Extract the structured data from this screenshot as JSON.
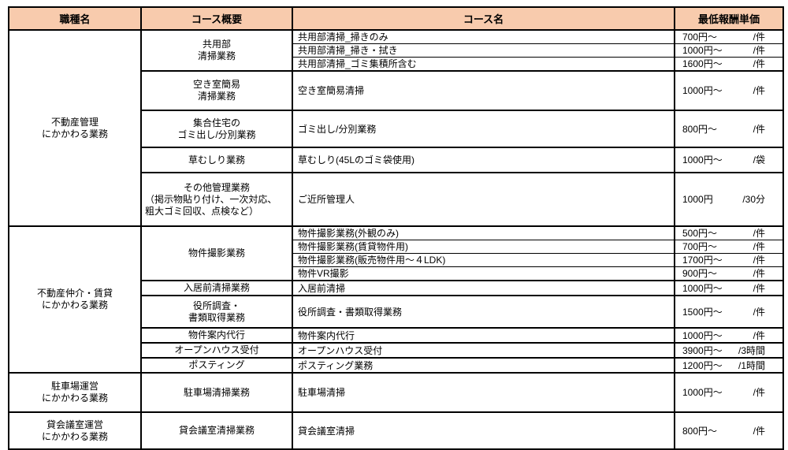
{
  "colors": {
    "header_bg": "#F8CBAD",
    "border": "#000000",
    "text": "#000000"
  },
  "table": {
    "columns": [
      "職種名",
      "コース概要",
      "コース名",
      "最低報酬単価"
    ],
    "sections": [
      {
        "job_lines": [
          "不動産管理",
          "にかかわる業務"
        ],
        "groups": [
          {
            "overview_lines": [
              "共用部",
              "清掃業務"
            ],
            "courses": [
              {
                "name": "共用部清掃_掃きのみ",
                "price": "700円～",
                "unit": "/件"
              },
              {
                "name": "共用部清掃_掃き・拭き",
                "price": "1000円～",
                "unit": "/件"
              },
              {
                "name": "共用部清掃_ゴミ集積所含む",
                "price": "1600円～",
                "unit": "/件"
              }
            ]
          },
          {
            "overview_lines": [
              "空き室簡易",
              "清掃業務"
            ],
            "courses": [
              {
                "name": "空き室簡易清掃",
                "price": "1000円～",
                "unit": "/件"
              }
            ]
          },
          {
            "overview_lines": [
              "集合住宅の",
              "ゴミ出し/分別業務"
            ],
            "courses": [
              {
                "name": "ゴミ出し/分別業務",
                "price": "800円～",
                "unit": "/件"
              }
            ]
          },
          {
            "overview_lines": [
              "草むしり業務"
            ],
            "courses": [
              {
                "name": "草むしり(45Lのゴミ袋使用)",
                "price": "1000円～",
                "unit": "/袋"
              }
            ]
          },
          {
            "overview_lines": [
              "その他管理業務",
              "（掲示物貼り付け、一次対応、",
              "粗大ゴミ回収、点検など）"
            ],
            "overview_mixed": true,
            "courses": [
              {
                "name": "ご近所管理人",
                "price": "1000円",
                "unit": "/30分"
              }
            ]
          }
        ]
      },
      {
        "job_lines": [
          "不動産仲介・賃貸",
          "にかかわる業務"
        ],
        "groups": [
          {
            "overview_lines": [
              "物件撮影業務"
            ],
            "courses": [
              {
                "name": "物件撮影業務(外観のみ)",
                "price": "500円～",
                "unit": "/件"
              },
              {
                "name": "物件撮影業務(賃貸物件用)",
                "price": "700円～",
                "unit": "/件"
              },
              {
                "name": "物件撮影業務(販売物件用～４LDK)",
                "price": "1700円～",
                "unit": "/件"
              },
              {
                "name": "物件VR撮影",
                "price": "900円～",
                "unit": "/件"
              }
            ]
          },
          {
            "overview_lines": [
              "入居前清掃業務"
            ],
            "courses": [
              {
                "name": "入居前清掃",
                "price": "1000円～",
                "unit": "/件"
              }
            ]
          },
          {
            "overview_lines": [
              "役所調査・",
              "書類取得業務"
            ],
            "courses": [
              {
                "name": "役所調査・書類取得業務",
                "price": "1500円～",
                "unit": "/件"
              }
            ]
          },
          {
            "overview_lines": [
              "物件案内代行"
            ],
            "courses": [
              {
                "name": "物件案内代行",
                "price": "1000円～",
                "unit": "/件"
              }
            ]
          },
          {
            "overview_lines": [
              "オープンハウス受付"
            ],
            "courses": [
              {
                "name": "オープンハウス受付",
                "price": "3900円～",
                "unit": "/3時間"
              }
            ]
          },
          {
            "overview_lines": [
              "ポスティング"
            ],
            "courses": [
              {
                "name": "ポスティング業務",
                "price": "1200円～",
                "unit": "/1時間"
              }
            ]
          }
        ]
      },
      {
        "job_lines": [
          "駐車場運営",
          "にかかわる業務"
        ],
        "groups": [
          {
            "overview_lines": [
              "駐車場清掃業務"
            ],
            "courses": [
              {
                "name": "駐車場清掃",
                "price": "1000円～",
                "unit": "/件"
              }
            ]
          }
        ]
      },
      {
        "job_lines": [
          "貸会議室運営",
          "にかかわる業務"
        ],
        "groups": [
          {
            "overview_lines": [
              "貸会議室清掃業務"
            ],
            "courses": [
              {
                "name": "貸会議室清掃",
                "price": "800円～",
                "unit": "/件"
              }
            ]
          }
        ]
      }
    ]
  }
}
